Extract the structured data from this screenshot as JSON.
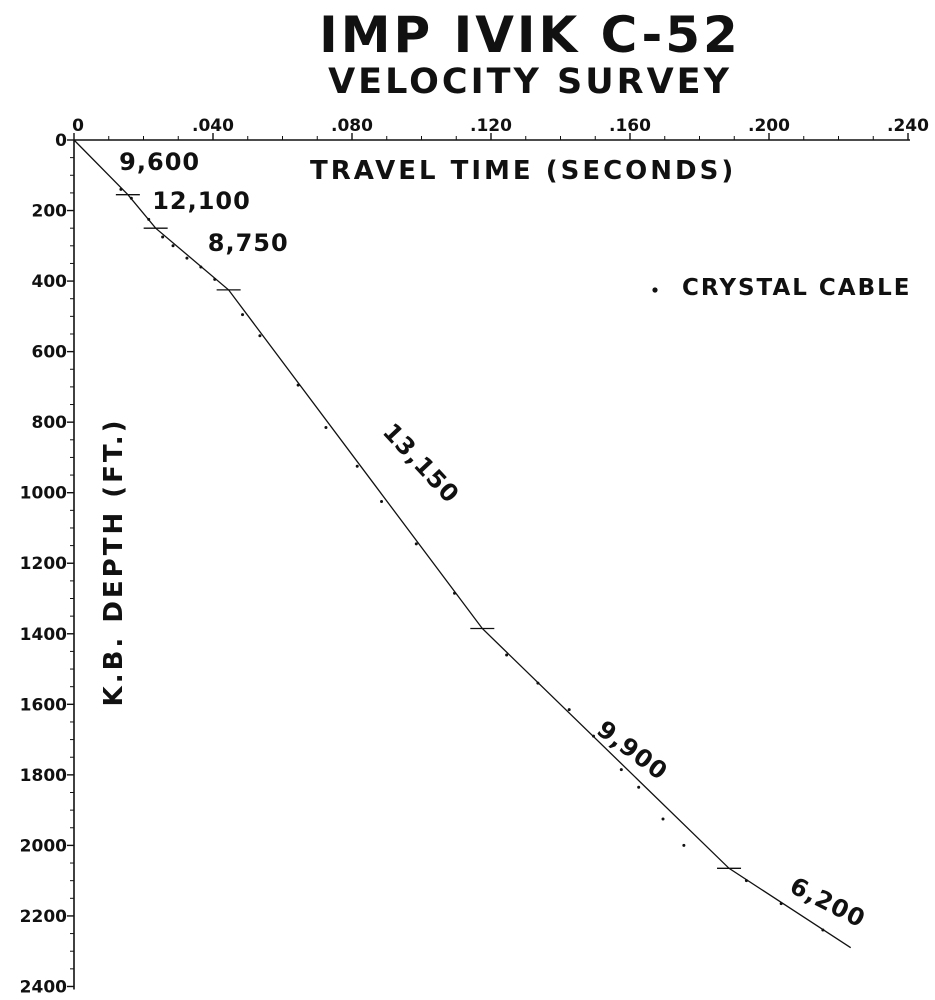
{
  "chart_data": {
    "type": "line",
    "title": "IMP IVIK C-52",
    "subtitle": "VELOCITY SURVEY",
    "xlabel": "TRAVEL TIME (SECONDS)",
    "ylabel": "K.B. DEPTH (FT.)",
    "xlim": [
      0,
      0.24
    ],
    "ylim": [
      0,
      2400
    ],
    "x_axis_position": "top",
    "y_inverted": true,
    "grid": false,
    "x_ticks": [
      {
        "value": 0,
        "label": "0"
      },
      {
        "value": 0.04,
        "label": ".040"
      },
      {
        "value": 0.08,
        "label": ".080"
      },
      {
        "value": 0.12,
        "label": ".120"
      },
      {
        "value": 0.16,
        "label": ".160"
      },
      {
        "value": 0.2,
        "label": ".200"
      },
      {
        "value": 0.24,
        "label": ".240"
      }
    ],
    "y_ticks": [
      {
        "value": 0,
        "label": "0"
      },
      {
        "value": 200,
        "label": "200"
      },
      {
        "value": 400,
        "label": "400"
      },
      {
        "value": 600,
        "label": "600"
      },
      {
        "value": 800,
        "label": "800"
      },
      {
        "value": 1000,
        "label": "1000"
      },
      {
        "value": 1200,
        "label": "1200"
      },
      {
        "value": 1400,
        "label": "1400"
      },
      {
        "value": 1600,
        "label": "1600"
      },
      {
        "value": 1800,
        "label": "1800"
      },
      {
        "value": 2000,
        "label": "2000"
      },
      {
        "value": 2200,
        "label": "2200"
      },
      {
        "value": 2400,
        "label": "2400"
      }
    ],
    "series": [
      {
        "x": [
          0,
          0.0155,
          0.0235,
          0.0445,
          0.1175,
          0.1885,
          0.2235
        ],
        "y": [
          0,
          155,
          250,
          425,
          1385,
          2065,
          2290
        ]
      }
    ],
    "interval_breaks": [
      {
        "x": 0.0155,
        "y": 155
      },
      {
        "x": 0.0235,
        "y": 250
      },
      {
        "x": 0.0445,
        "y": 425
      },
      {
        "x": 0.1175,
        "y": 1385
      },
      {
        "x": 0.1885,
        "y": 2065
      }
    ],
    "crystal_cable_points": [
      {
        "x": 0.0135,
        "y": 140
      },
      {
        "x": 0.0165,
        "y": 165
      },
      {
        "x": 0.0215,
        "y": 225
      },
      {
        "x": 0.0255,
        "y": 275
      },
      {
        "x": 0.0285,
        "y": 300
      },
      {
        "x": 0.0325,
        "y": 335
      },
      {
        "x": 0.0365,
        "y": 360
      },
      {
        "x": 0.0405,
        "y": 395
      },
      {
        "x": 0.0485,
        "y": 495
      },
      {
        "x": 0.0535,
        "y": 555
      },
      {
        "x": 0.0645,
        "y": 695
      },
      {
        "x": 0.0725,
        "y": 815
      },
      {
        "x": 0.0815,
        "y": 925
      },
      {
        "x": 0.0885,
        "y": 1025
      },
      {
        "x": 0.0985,
        "y": 1145
      },
      {
        "x": 0.1095,
        "y": 1285
      },
      {
        "x": 0.1245,
        "y": 1460
      },
      {
        "x": 0.1335,
        "y": 1540
      },
      {
        "x": 0.1425,
        "y": 1615
      },
      {
        "x": 0.1495,
        "y": 1690
      },
      {
        "x": 0.1575,
        "y": 1785
      },
      {
        "x": 0.1625,
        "y": 1835
      },
      {
        "x": 0.1695,
        "y": 1925
      },
      {
        "x": 0.1755,
        "y": 2000
      },
      {
        "x": 0.1935,
        "y": 2100
      },
      {
        "x": 0.2035,
        "y": 2165
      },
      {
        "x": 0.2155,
        "y": 2240
      }
    ],
    "interval_velocities": [
      {
        "label": "9,600",
        "x": 0.013,
        "y": 85,
        "angle": 0
      },
      {
        "label": "12,100",
        "x": 0.0225,
        "y": 195,
        "angle": 0
      },
      {
        "label": "8,750",
        "x": 0.0385,
        "y": 315,
        "angle": 0
      },
      {
        "label": "13,150",
        "x": 0.0885,
        "y": 830,
        "angle": 47
      },
      {
        "label": "9,900",
        "x": 0.15,
        "y": 1680,
        "angle": 37
      },
      {
        "label": "6,200",
        "x": 0.2055,
        "y": 2130,
        "angle": 27
      }
    ],
    "legend": {
      "label": "CRYSTAL CABLE",
      "marker": "dot",
      "position": "top-right"
    }
  }
}
